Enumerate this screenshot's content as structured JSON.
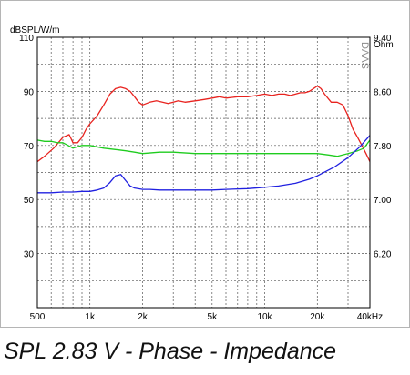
{
  "caption": "SPL 2.83 V - Phase - Impedance",
  "chart_data": {
    "type": "line",
    "title": "",
    "xlabel": "",
    "ylabel_left": "dBSPL/W/m",
    "ylabel_right": "Ohm",
    "watermark": "DAAS",
    "x_scale": "log",
    "xlim": [
      500,
      40000
    ],
    "ylim_left": [
      10,
      110
    ],
    "ylim_right": [
      5.4,
      9.4
    ],
    "grid": true,
    "x_tick_values": [
      500,
      1000,
      2000,
      5000,
      10000,
      20000,
      40000
    ],
    "x_tick_labels": [
      "500",
      "1k",
      "2k",
      "5k",
      "10k",
      "20k",
      "40kHz"
    ],
    "y_left_ticks": [
      {
        "value": 110,
        "label": "110"
      },
      {
        "value": 90,
        "label": "90"
      },
      {
        "value": 70,
        "label": "70"
      },
      {
        "value": 50,
        "label": "50"
      },
      {
        "value": 30,
        "label": "30"
      }
    ],
    "y_right_ticks": [
      {
        "value": 9.4,
        "label": "9.40"
      },
      {
        "value": 8.6,
        "label": "8.60"
      },
      {
        "value": 7.8,
        "label": "7.80"
      },
      {
        "value": 7.0,
        "label": "7.00"
      },
      {
        "value": 6.2,
        "label": "6.20"
      }
    ],
    "series": [
      {
        "color": "#e8231f",
        "axis": "left",
        "x": [
          500,
          550,
          620,
          700,
          760,
          800,
          850,
          900,
          950,
          1000,
          1100,
          1200,
          1300,
          1400,
          1500,
          1600,
          1700,
          1800,
          1900,
          2000,
          2100,
          2200,
          2400,
          2600,
          2800,
          3000,
          3200,
          3500,
          4000,
          4500,
          5000,
          5500,
          6000,
          7000,
          8000,
          9000,
          10000,
          11000,
          12000,
          13000,
          14000,
          15000,
          16000,
          17000,
          18000,
          19000,
          20000,
          21000,
          22000,
          24000,
          26000,
          28000,
          30000,
          32000,
          34000,
          36000,
          38000,
          40000
        ],
        "values": [
          64,
          66,
          69,
          73,
          74,
          71,
          71,
          73,
          76,
          78,
          81,
          85,
          89,
          91,
          91.5,
          91,
          90,
          88,
          86,
          85,
          85.5,
          86,
          86.5,
          86,
          85.5,
          86,
          86.5,
          86,
          86.5,
          87,
          87.5,
          88,
          87.5,
          88,
          88,
          88.5,
          89,
          88.5,
          89,
          89,
          88.5,
          89,
          89.5,
          89.5,
          90,
          91,
          92,
          91,
          89,
          86,
          86,
          85,
          81,
          76,
          73,
          70,
          67,
          64
        ]
      },
      {
        "color": "#1fcc1f",
        "axis": "left",
        "x": [
          500,
          550,
          600,
          650,
          700,
          750,
          800,
          900,
          1000,
          1200,
          1400,
          1600,
          1800,
          2000,
          2500,
          3000,
          4000,
          5000,
          6000,
          8000,
          10000,
          13000,
          16000,
          20000,
          23000,
          26000,
          30000,
          34000,
          37000,
          40000
        ],
        "values": [
          72,
          71.5,
          71.5,
          71,
          71,
          70,
          69,
          70,
          70,
          69,
          68.5,
          68,
          67.5,
          67,
          67.5,
          67.5,
          67,
          67,
          67,
          67,
          67,
          67,
          67,
          67,
          66.5,
          66,
          67,
          68,
          69,
          72
        ]
      },
      {
        "color": "#2020e0",
        "axis": "right",
        "x": [
          500,
          600,
          700,
          800,
          900,
          1000,
          1100,
          1200,
          1300,
          1400,
          1500,
          1600,
          1700,
          1800,
          2000,
          2200,
          2500,
          3000,
          4000,
          5000,
          6000,
          8000,
          10000,
          12000,
          15000,
          18000,
          20000,
          25000,
          30000,
          35000,
          40000
        ],
        "values": [
          7.1,
          7.1,
          7.11,
          7.11,
          7.12,
          7.12,
          7.14,
          7.17,
          7.25,
          7.35,
          7.37,
          7.28,
          7.2,
          7.17,
          7.15,
          7.15,
          7.14,
          7.14,
          7.14,
          7.14,
          7.15,
          7.16,
          7.18,
          7.2,
          7.24,
          7.3,
          7.35,
          7.48,
          7.62,
          7.78,
          7.95
        ]
      }
    ]
  }
}
